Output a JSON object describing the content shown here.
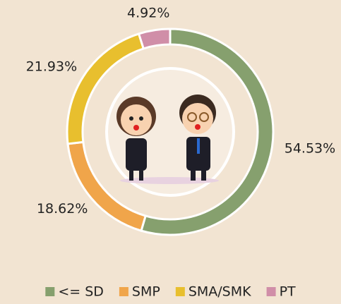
{
  "chart_data": {
    "type": "donut",
    "categories": [
      "<= SD",
      "SMP",
      "SMA/SMK",
      "PT"
    ],
    "values": [
      54.53,
      18.62,
      21.93,
      4.92
    ],
    "value_labels": [
      "54.53%",
      "18.62%",
      "21.93%",
      "4.92%"
    ],
    "colors": [
      "#86a06e",
      "#f0a54a",
      "#e8bf2e",
      "#d08ea8"
    ],
    "legend": "bottom"
  }
}
